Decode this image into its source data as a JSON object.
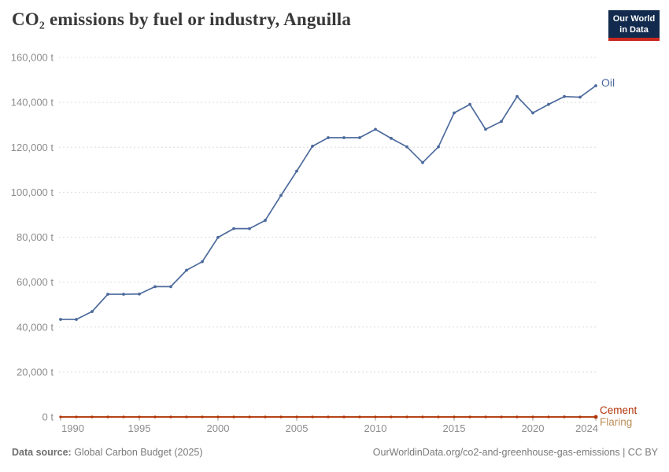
{
  "header": {
    "title": "CO₂ emissions by fuel or industry, Anguilla"
  },
  "logo": {
    "line1": "Our World",
    "line2": "in Data",
    "bg_color": "#122A4D",
    "bar_color": "#C8281E"
  },
  "chart_data": {
    "type": "line",
    "title": "CO₂ emissions by fuel or industry, Anguilla",
    "unit": "t",
    "x": [
      1990,
      1991,
      1992,
      1993,
      1994,
      1995,
      1996,
      1997,
      1998,
      1999,
      2000,
      2001,
      2002,
      2003,
      2004,
      2005,
      2006,
      2007,
      2008,
      2009,
      2010,
      2011,
      2012,
      2013,
      2014,
      2015,
      2016,
      2017,
      2018,
      2019,
      2020,
      2021,
      2022,
      2023,
      2024
    ],
    "series": [
      {
        "name": "Oil",
        "color": "#4C6A9C",
        "values": [
          43400,
          43400,
          46900,
          54600,
          54600,
          54700,
          58000,
          58000,
          65300,
          69100,
          79900,
          83800,
          83800,
          87500,
          98600,
          109400,
          120500,
          124300,
          124300,
          124300,
          128000,
          124000,
          120200,
          113200,
          120200,
          135300,
          139100,
          128000,
          131500,
          142600,
          135300,
          139100,
          142600,
          142300,
          147400
        ]
      },
      {
        "name": "Cement",
        "color": "#B13507",
        "values": [
          0,
          0,
          0,
          0,
          0,
          0,
          0,
          0,
          0,
          0,
          0,
          0,
          0,
          0,
          0,
          0,
          0,
          0,
          0,
          0,
          0,
          0,
          0,
          0,
          0,
          0,
          0,
          0,
          0,
          0,
          0,
          0,
          0,
          0,
          0
        ]
      },
      {
        "name": "Flaring",
        "color": "#BC8E5A",
        "values": [
          0,
          0,
          0,
          0,
          0,
          0,
          0,
          0,
          0,
          0,
          0,
          0,
          0,
          0,
          0,
          0,
          0,
          0,
          0,
          0,
          0,
          0,
          0,
          0,
          0,
          0,
          0,
          0,
          0,
          0,
          0,
          0,
          0,
          0,
          0
        ]
      }
    ],
    "xlabel": "",
    "ylabel": "",
    "ylim": [
      0,
      160000
    ],
    "xlim": [
      1990,
      2024
    ],
    "y_ticks": [
      0,
      20000,
      40000,
      60000,
      80000,
      100000,
      120000,
      140000,
      160000
    ],
    "y_tick_labels": [
      "0 t",
      "20,000 t",
      "40,000 t",
      "60,000 t",
      "80,000 t",
      "100,000 t",
      "120,000 t",
      "140,000 t",
      "160,000 t"
    ],
    "x_ticks": [
      1990,
      1995,
      2000,
      2005,
      2010,
      2015,
      2020,
      2024
    ],
    "x_tick_labels": [
      "1990",
      "1995",
      "2000",
      "2005",
      "2010",
      "2015",
      "2020",
      "2024"
    ],
    "grid": "horizontal dashed, on",
    "legend_position": "labels at right end of lines"
  },
  "footer": {
    "source_label": "Data source:",
    "source_value": " Global Carbon Budget (2025)",
    "credit": "OurWorldinData.org/co2-and-greenhouse-gas-emissions | CC BY"
  }
}
